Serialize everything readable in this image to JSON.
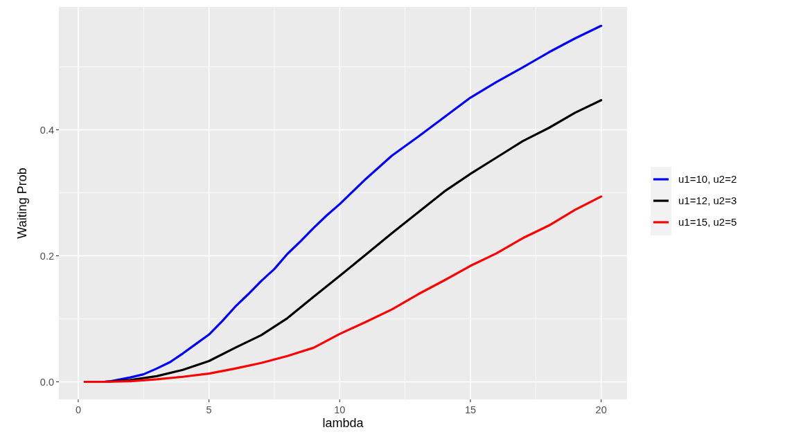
{
  "chart_data": {
    "type": "line",
    "xlabel": "lambda",
    "ylabel": "Waiting Prob",
    "xlim": [
      -0.74,
      20.99
    ],
    "ylim": [
      -0.028,
      0.595
    ],
    "xticks": [
      0,
      {
        "value": 2.5,
        "label": null
      },
      5,
      {
        "value": 7.5,
        "label": null
      },
      10,
      {
        "value": 12.5,
        "label": null
      },
      15,
      {
        "value": 17.5,
        "label": null
      },
      20
    ],
    "yticks": [
      "0.0",
      {
        "value": 0.1,
        "label": null
      },
      {
        "value": 0.2,
        "label": "0.2"
      },
      {
        "value": 0.3,
        "label": null
      },
      {
        "value": 0.4,
        "label": "0.4"
      },
      {
        "value": 0.5,
        "label": null
      }
    ],
    "grid": true,
    "legend": "right",
    "line_style": "solid",
    "marker": "none",
    "series": [
      {
        "name": "u1=10, u2=2",
        "color": "#0000ff",
        "x": [
          0.25,
          1,
          1.25,
          2,
          2.5,
          3,
          3.5,
          4,
          4.5,
          5,
          5.5,
          6,
          6.5,
          7,
          7.5,
          8,
          8.5,
          9,
          9.5,
          10,
          11,
          12,
          13,
          14,
          15,
          16,
          17,
          18,
          19,
          20
        ],
        "values": [
          0,
          0,
          0.001,
          0.007,
          0.012,
          0.021,
          0.031,
          0.045,
          0.06,
          0.075,
          0.096,
          0.119,
          0.139,
          0.16,
          0.179,
          0.203,
          0.223,
          0.244,
          0.264,
          0.282,
          0.322,
          0.359,
          0.389,
          0.42,
          0.451,
          0.476,
          0.499,
          0.523,
          0.545,
          0.565
        ]
      },
      {
        "name": "u1=12, u2=3",
        "color": "#000000",
        "x": [
          0.25,
          1,
          2,
          3,
          4,
          5,
          6,
          7,
          8,
          9,
          10,
          11,
          12,
          13,
          14,
          15,
          16,
          17,
          18,
          19,
          20
        ],
        "values": [
          0,
          0,
          0.003,
          0.009,
          0.019,
          0.033,
          0.054,
          0.074,
          0.101,
          0.135,
          0.168,
          0.202,
          0.236,
          0.269,
          0.302,
          0.33,
          0.356,
          0.382,
          0.403,
          0.427,
          0.447
        ]
      },
      {
        "name": "u1=15, u2=5",
        "color": "#ff0000",
        "x": [
          0.25,
          1,
          2,
          3,
          4,
          5,
          6,
          7,
          8,
          9,
          10,
          11,
          12,
          13,
          14,
          15,
          16,
          17,
          18,
          19,
          20
        ],
        "values": [
          0,
          0,
          0.001,
          0.004,
          0.008,
          0.013,
          0.021,
          0.03,
          0.041,
          0.054,
          0.076,
          0.095,
          0.115,
          0.139,
          0.161,
          0.184,
          0.204,
          0.228,
          0.248,
          0.273,
          0.294
        ]
      }
    ]
  }
}
